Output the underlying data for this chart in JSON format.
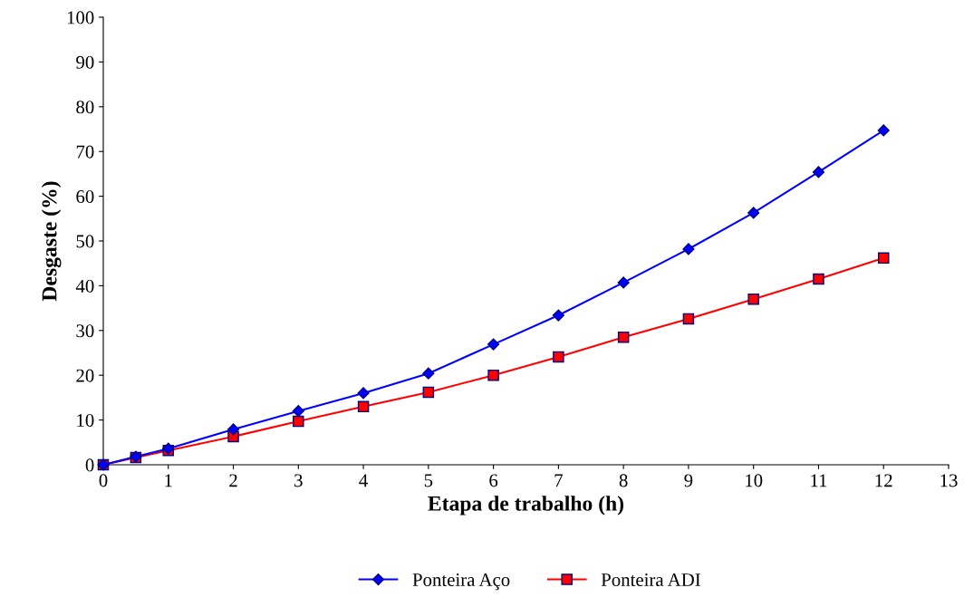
{
  "chart_data": {
    "type": "line",
    "xlabel": "Etapa de trabalho (h)",
    "ylabel": "Desgaste (%)",
    "x": [
      0,
      0.5,
      1,
      2,
      3,
      4,
      5,
      6,
      7,
      8,
      9,
      10,
      11,
      12
    ],
    "series": [
      {
        "name": "Ponteira Aço",
        "color": "#0000ff",
        "marker": "diamond",
        "values": [
          0,
          1.8,
          3.6,
          7.9,
          12,
          16,
          20.4,
          26.9,
          33.4,
          40.7,
          48.2,
          56.3,
          65.4,
          74.7
        ]
      },
      {
        "name": "Ponteira ADI",
        "color": "#ff0000",
        "marker": "square",
        "values": [
          0,
          1.6,
          3.2,
          6.3,
          9.7,
          13,
          16.2,
          20,
          24.1,
          28.5,
          32.6,
          37,
          41.5,
          46.2
        ]
      }
    ],
    "xlim": [
      0,
      13
    ],
    "xticks": [
      0,
      1,
      2,
      3,
      4,
      5,
      6,
      7,
      8,
      9,
      10,
      11,
      12,
      13
    ],
    "ylim": [
      0,
      100
    ],
    "yticks": [
      0,
      10,
      20,
      30,
      40,
      50,
      60,
      70,
      80,
      90,
      100
    ],
    "grid": false,
    "legend": "bottom",
    "line_style": "solid"
  }
}
